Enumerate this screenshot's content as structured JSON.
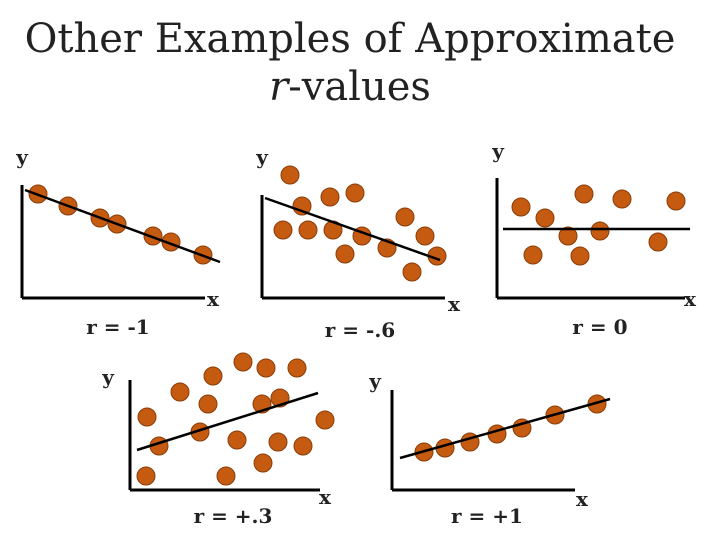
{
  "title": {
    "line1": "Other Examples of Approximate",
    "italic": "r",
    "line2": "-values"
  },
  "panels": [
    {
      "y_label": "y",
      "x_label": "x",
      "r_label": "r = -1"
    },
    {
      "y_label": "y",
      "x_label": "x",
      "r_label": "r = -.6"
    },
    {
      "y_label": "y",
      "x_label": "x",
      "r_label": "r = 0"
    },
    {
      "y_label": "y",
      "x_label": "x",
      "r_label": "r = +.3"
    },
    {
      "y_label": "y",
      "x_label": "x",
      "r_label": "r = +1"
    }
  ]
}
